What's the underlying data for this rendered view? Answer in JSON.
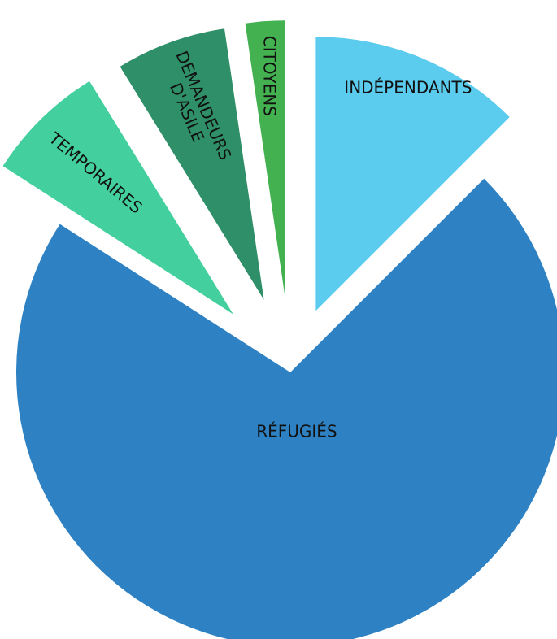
{
  "chart_data": {
    "type": "pie",
    "slices": [
      {
        "label": "INDÉPENDANTS",
        "value": 12.5,
        "color": "#5bcbee",
        "label_lines": [
          "INDÉPENDANTS"
        ],
        "label_rotation": 0
      },
      {
        "label": "RÉFUGIÉS",
        "value": 71.6,
        "color": "#2e82c3",
        "label_lines": [
          "RÉFUGIÉS"
        ],
        "label_rotation": 0
      },
      {
        "label": "TEMPORAIRES",
        "value": 7.1,
        "color": "#43cf9e",
        "label_lines": [
          "TEMPORAIRES"
        ],
        "label_rotation": 40
      },
      {
        "label": "DEMANDEURS D'ASILE",
        "value": 6.5,
        "color": "#2e8f68",
        "label_lines": [
          "DEMANDEURS",
          "D'ASILE"
        ],
        "label_rotation": 67
      },
      {
        "label": "CITOYENS",
        "value": 2.3,
        "color": "#44b150",
        "label_lines": [
          "CITOYENS"
        ],
        "label_rotation": 90
      }
    ],
    "start_angle_deg": 0,
    "direction": "clockwise",
    "exploded": true
  }
}
